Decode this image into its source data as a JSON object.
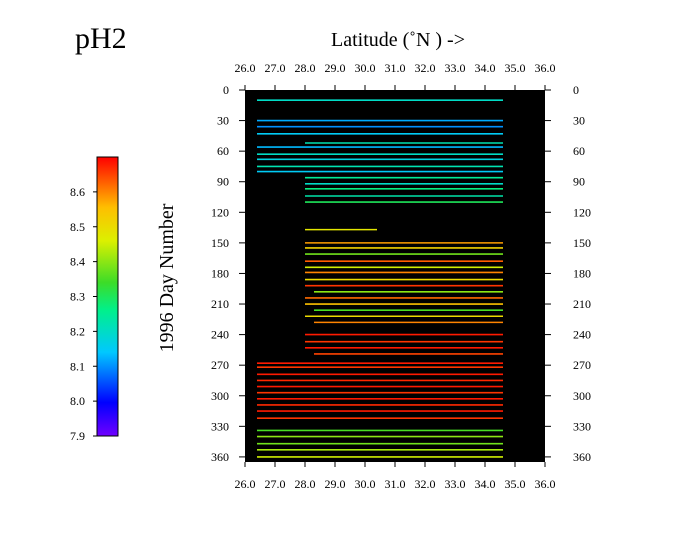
{
  "chart_data": {
    "type": "heatmap",
    "title": "pH2",
    "xlabel": "Latitude  (˚N )  ->",
    "ylabel": "1996  Day  Number",
    "x_ticks": [
      "26.0",
      "27.0",
      "28.0",
      "29.0",
      "30.0",
      "31.0",
      "32.0",
      "33.0",
      "34.0",
      "35.0",
      "36.0"
    ],
    "y_ticks": [
      "0",
      "30",
      "60",
      "90",
      "120",
      "150",
      "180",
      "210",
      "240",
      "270",
      "300",
      "330",
      "360"
    ],
    "xlim": [
      26.0,
      36.0
    ],
    "ylim": [
      0,
      365
    ],
    "y_inverted": true,
    "plot_background": "#000000",
    "colorbar": {
      "min": 7.9,
      "max": 8.7,
      "ticks": [
        "8.6",
        "8.5",
        "8.4",
        "8.3",
        "8.2",
        "8.1",
        "8.0",
        "7.9"
      ],
      "colormap": "rainbow"
    },
    "transects": [
      {
        "day": 10,
        "lat_start": 26.4,
        "lat_end": 34.6,
        "value": 8.2
      },
      {
        "day": 30,
        "lat_start": 26.4,
        "lat_end": 34.6,
        "value": 8.12
      },
      {
        "day": 36,
        "lat_start": 26.4,
        "lat_end": 34.6,
        "value": 8.1
      },
      {
        "day": 43,
        "lat_start": 26.4,
        "lat_end": 34.6,
        "value": 8.15
      },
      {
        "day": 52,
        "lat_start": 28.0,
        "lat_end": 34.6,
        "value": 8.22
      },
      {
        "day": 56,
        "lat_start": 26.4,
        "lat_end": 34.6,
        "value": 8.13
      },
      {
        "day": 63,
        "lat_start": 26.4,
        "lat_end": 34.6,
        "value": 8.2
      },
      {
        "day": 68,
        "lat_start": 26.4,
        "lat_end": 34.6,
        "value": 8.17
      },
      {
        "day": 75,
        "lat_start": 26.4,
        "lat_end": 34.6,
        "value": 8.22
      },
      {
        "day": 80,
        "lat_start": 26.4,
        "lat_end": 34.6,
        "value": 8.15
      },
      {
        "day": 86,
        "lat_start": 28.0,
        "lat_end": 34.6,
        "value": 8.25
      },
      {
        "day": 92,
        "lat_start": 28.0,
        "lat_end": 34.6,
        "value": 8.2
      },
      {
        "day": 97,
        "lat_start": 28.0,
        "lat_end": 34.6,
        "value": 8.27
      },
      {
        "day": 104,
        "lat_start": 28.0,
        "lat_end": 34.6,
        "value": 8.23
      },
      {
        "day": 110,
        "lat_start": 28.0,
        "lat_end": 34.6,
        "value": 8.3
      },
      {
        "day": 137,
        "lat_start": 28.0,
        "lat_end": 30.4,
        "value": 8.48
      },
      {
        "day": 150,
        "lat_start": 28.0,
        "lat_end": 34.6,
        "value": 8.58
      },
      {
        "day": 155,
        "lat_start": 28.0,
        "lat_end": 34.6,
        "value": 8.52
      },
      {
        "day": 161,
        "lat_start": 28.0,
        "lat_end": 34.6,
        "value": 8.38
      },
      {
        "day": 168,
        "lat_start": 28.0,
        "lat_end": 34.6,
        "value": 8.63
      },
      {
        "day": 174,
        "lat_start": 28.0,
        "lat_end": 34.6,
        "value": 8.45
      },
      {
        "day": 179,
        "lat_start": 28.0,
        "lat_end": 34.6,
        "value": 8.6
      },
      {
        "day": 186,
        "lat_start": 28.0,
        "lat_end": 34.6,
        "value": 8.5
      },
      {
        "day": 192,
        "lat_start": 28.0,
        "lat_end": 34.6,
        "value": 8.66
      },
      {
        "day": 198,
        "lat_start": 28.3,
        "lat_end": 34.6,
        "value": 8.4
      },
      {
        "day": 204,
        "lat_start": 28.0,
        "lat_end": 34.6,
        "value": 8.62
      },
      {
        "day": 210,
        "lat_start": 28.0,
        "lat_end": 34.6,
        "value": 8.55
      },
      {
        "day": 216,
        "lat_start": 28.3,
        "lat_end": 34.6,
        "value": 8.35
      },
      {
        "day": 222,
        "lat_start": 28.0,
        "lat_end": 34.6,
        "value": 8.5
      },
      {
        "day": 228,
        "lat_start": 28.3,
        "lat_end": 34.6,
        "value": 8.6
      },
      {
        "day": 240,
        "lat_start": 28.0,
        "lat_end": 34.6,
        "value": 8.68
      },
      {
        "day": 247,
        "lat_start": 28.0,
        "lat_end": 34.6,
        "value": 8.66
      },
      {
        "day": 253,
        "lat_start": 28.0,
        "lat_end": 34.6,
        "value": 8.68
      },
      {
        "day": 259,
        "lat_start": 28.3,
        "lat_end": 34.6,
        "value": 8.65
      },
      {
        "day": 268,
        "lat_start": 26.4,
        "lat_end": 34.6,
        "value": 8.68
      },
      {
        "day": 272,
        "lat_start": 26.4,
        "lat_end": 34.6,
        "value": 8.66
      },
      {
        "day": 279,
        "lat_start": 26.4,
        "lat_end": 34.6,
        "value": 8.68
      },
      {
        "day": 285,
        "lat_start": 26.4,
        "lat_end": 34.6,
        "value": 8.67
      },
      {
        "day": 291,
        "lat_start": 26.4,
        "lat_end": 34.6,
        "value": 8.68
      },
      {
        "day": 297,
        "lat_start": 26.4,
        "lat_end": 34.6,
        "value": 8.66
      },
      {
        "day": 303,
        "lat_start": 26.4,
        "lat_end": 34.6,
        "value": 8.68
      },
      {
        "day": 309,
        "lat_start": 26.4,
        "lat_end": 34.6,
        "value": 8.67
      },
      {
        "day": 315,
        "lat_start": 26.4,
        "lat_end": 34.6,
        "value": 8.68
      },
      {
        "day": 322,
        "lat_start": 26.4,
        "lat_end": 34.6,
        "value": 8.66
      },
      {
        "day": 334,
        "lat_start": 26.4,
        "lat_end": 34.6,
        "value": 8.35
      },
      {
        "day": 340,
        "lat_start": 26.4,
        "lat_end": 34.6,
        "value": 8.4
      },
      {
        "day": 347,
        "lat_start": 26.4,
        "lat_end": 34.6,
        "value": 8.38
      },
      {
        "day": 353,
        "lat_start": 26.4,
        "lat_end": 34.6,
        "value": 8.42
      },
      {
        "day": 360,
        "lat_start": 26.4,
        "lat_end": 34.6,
        "value": 8.45
      }
    ]
  }
}
